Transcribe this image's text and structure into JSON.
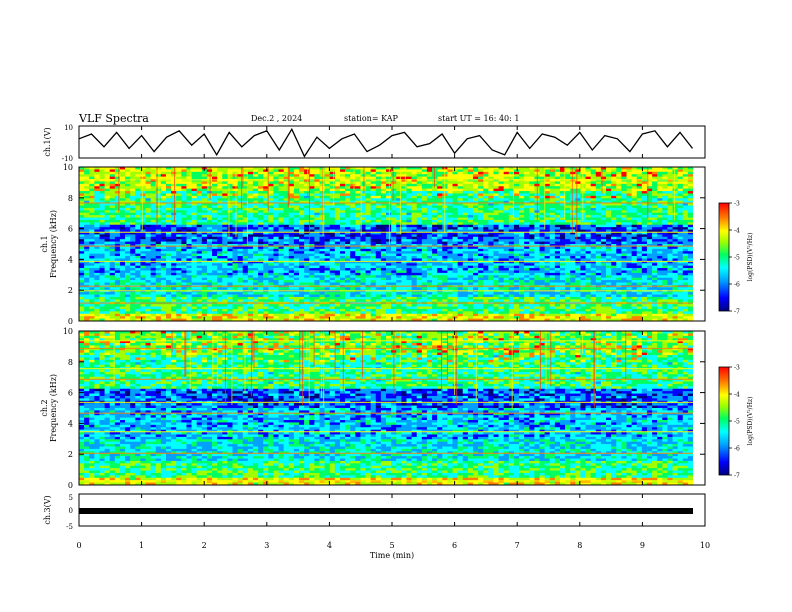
{
  "header": {
    "title": "VLF Spectra",
    "date": "Dec.2  , 2024",
    "station": "station= KAP",
    "start_ut": "start  UT  =   16: 40: 1"
  },
  "chart_data": [
    {
      "type": "line",
      "panel": "ch1-waveform",
      "ylabel": "ch.1(V)",
      "ylim": [
        -10,
        10
      ],
      "yticks": [
        "10",
        "-10"
      ],
      "xlim": [
        0,
        10
      ],
      "x": [
        0,
        0.2,
        0.4,
        0.6,
        0.8,
        1.0,
        1.2,
        1.4,
        1.6,
        1.8,
        2.0,
        2.2,
        2.4,
        2.6,
        2.8,
        3.0,
        3.2,
        3.4,
        3.6,
        3.8,
        4.0,
        4.2,
        4.4,
        4.6,
        4.8,
        5.0,
        5.2,
        5.4,
        5.6,
        5.8,
        6.0,
        6.2,
        6.4,
        6.6,
        6.8,
        7.0,
        7.2,
        7.4,
        7.6,
        7.8,
        8.0,
        8.2,
        8.4,
        8.6,
        8.8,
        9.0,
        9.2,
        9.4,
        9.6,
        9.8
      ],
      "y": [
        2,
        5,
        -3,
        6,
        -4,
        4,
        -6,
        3,
        7,
        -2,
        5,
        -8,
        6,
        -3,
        4,
        7,
        -5,
        8,
        -9,
        3,
        -4,
        2,
        5,
        -6,
        -2,
        4,
        6,
        -3,
        -1,
        5,
        -7,
        2,
        4,
        -5,
        -8,
        6,
        -4,
        5,
        3,
        -2,
        6,
        -5,
        4,
        2,
        -6,
        5,
        7,
        -3,
        6,
        -4
      ]
    },
    {
      "type": "heatmap",
      "panel": "ch1-spectrogram",
      "ylabel": "ch.1\nFrequency  (kHz)",
      "ylim": [
        0,
        10
      ],
      "yticks": [
        "0",
        "2",
        "4",
        "6",
        "8",
        "10"
      ],
      "xlim": [
        0,
        10
      ],
      "colorbar": {
        "label": "log(PSD)(V²/Hz)",
        "range": [
          -7,
          -3
        ],
        "ticks": [
          "-3",
          "-4",
          "-5",
          "-6",
          "-7"
        ]
      }
    },
    {
      "type": "heatmap",
      "panel": "ch2-spectrogram",
      "ylabel": "ch.2\nFrequency  (kHz)",
      "ylim": [
        0,
        10
      ],
      "yticks": [
        "0",
        "2",
        "4",
        "6",
        "8",
        "10"
      ],
      "xlim": [
        0,
        10
      ],
      "colorbar": {
        "label": "log(PSD)(V²/Hz)",
        "range": [
          -7,
          -3
        ],
        "ticks": [
          "-3",
          "-4",
          "-5",
          "-6",
          "-7"
        ]
      }
    },
    {
      "type": "line",
      "panel": "ch3-waveform",
      "ylabel": "ch.3(V)",
      "ylim": [
        -5,
        5
      ],
      "yticks": [
        "5",
        "0",
        "-5"
      ],
      "xlim": [
        0,
        10
      ],
      "x": [
        0,
        9.8
      ],
      "y": [
        0,
        0
      ],
      "xlabel": "Time  (min)",
      "xticks": [
        "0",
        "1",
        "2",
        "3",
        "4",
        "5",
        "6",
        "7",
        "8",
        "9",
        "10"
      ]
    }
  ],
  "colors": {
    "colormap": [
      "#000080",
      "#0000ff",
      "#00a0ff",
      "#00ffff",
      "#00ff60",
      "#a0ff00",
      "#ffff00",
      "#ff8000",
      "#ff0000"
    ],
    "axis": "#000000"
  }
}
